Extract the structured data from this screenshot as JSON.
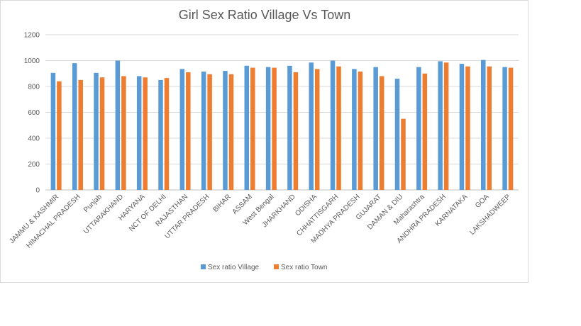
{
  "chart_data": {
    "type": "bar",
    "title": "Girl Sex Ratio Village Vs Town",
    "xlabel": "",
    "ylabel": "",
    "ylim": [
      0,
      1200
    ],
    "yticks": [
      0,
      200,
      400,
      600,
      800,
      1000,
      1200
    ],
    "grid": true,
    "legend_position": "bottom",
    "categories": [
      "JAMMU & KASHMIR",
      "HIMACHAL PRADESH",
      "Punjab",
      "UTTARAKHAND",
      "HARYANA",
      "NCT OF DELHI",
      "RAJASTHAN",
      "UTTAR PRADESH",
      "BIHAR",
      "ASSAM",
      "West Bengal",
      "JHARKHAND",
      "ODISHA",
      "CHHATTISGARH",
      "MADHYA PRADESH",
      "GUJARAT",
      "DAMAN & DIU",
      "Maharashtra",
      "ANDHRA PRADESH",
      "KARNATAKA",
      "GOA",
      "LAKSHADWEEP"
    ],
    "series": [
      {
        "name": "Sex ratio Village",
        "color": "#5b9bd5",
        "values": [
          905,
          980,
          905,
          1000,
          880,
          850,
          935,
          915,
          920,
          960,
          950,
          960,
          985,
          1000,
          935,
          950,
          860,
          950,
          995,
          975,
          1005,
          950
        ]
      },
      {
        "name": "Sex ratio Town",
        "color": "#ed7d31",
        "values": [
          840,
          850,
          870,
          880,
          870,
          865,
          910,
          895,
          895,
          945,
          945,
          910,
          935,
          955,
          915,
          880,
          550,
          900,
          985,
          955,
          955,
          945
        ]
      }
    ]
  }
}
